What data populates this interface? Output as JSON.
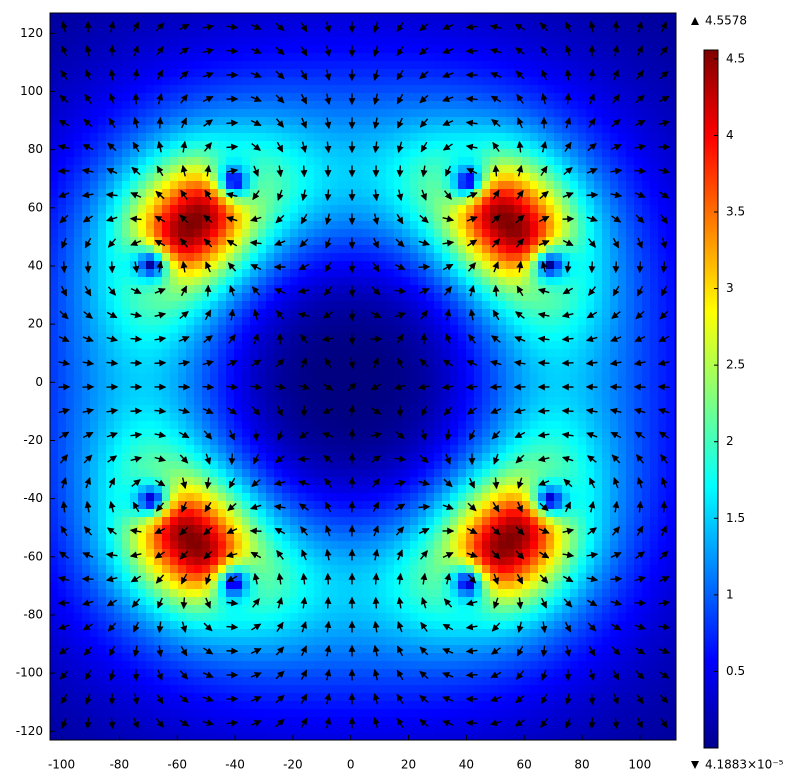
{
  "chart_data": {
    "type": "field",
    "xlim": [
      -104,
      112.5
    ],
    "ylim": [
      -123,
      127
    ],
    "xticks": [
      -100,
      -80,
      -60,
      -40,
      -20,
      0,
      20,
      40,
      60,
      80,
      100
    ],
    "yticks": [
      -120,
      -100,
      -80,
      -60,
      -40,
      -20,
      0,
      20,
      40,
      60,
      80,
      100,
      120
    ],
    "colorbar": {
      "lim": [
        4.1883e-05,
        4.5578
      ],
      "ticks": [
        0.5,
        1,
        1.5,
        2,
        2.5,
        3,
        3.5,
        4,
        4.5
      ],
      "max_label": "4.5578",
      "min_label": "4.1883×10⁻⁵",
      "colormap": "jet"
    }
  }
}
